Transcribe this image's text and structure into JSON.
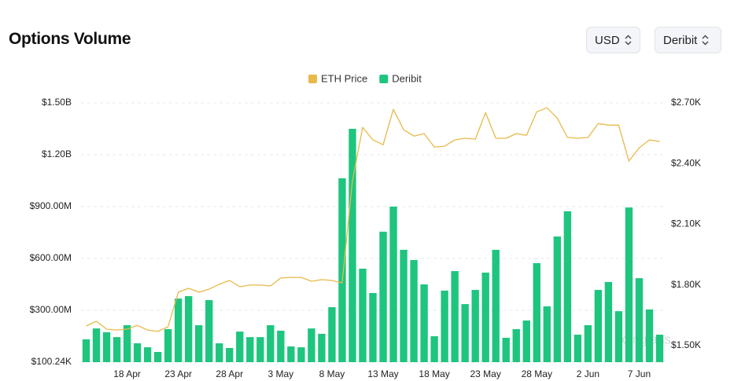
{
  "title": "Options Volume",
  "controls": [
    "USD",
    "Deribit"
  ],
  "watermark": "coinglass",
  "chart_data": {
    "type": "bar-line",
    "categories": [
      null,
      null,
      null,
      null,
      "18 Apr",
      null,
      null,
      null,
      null,
      "23 Apr",
      null,
      null,
      null,
      null,
      "28 Apr",
      null,
      null,
      null,
      null,
      "3 May",
      null,
      null,
      null,
      null,
      "8 May",
      null,
      null,
      null,
      null,
      "13 May",
      null,
      null,
      null,
      null,
      "18 May",
      null,
      null,
      null,
      null,
      "23 May",
      null,
      null,
      null,
      null,
      "28 May",
      null,
      null,
      null,
      null,
      "2 Jun",
      null,
      null,
      null,
      null,
      "7 Jun",
      null,
      null
    ],
    "series": [
      {
        "name": "ETH Price",
        "color": "#e7b94a",
        "type": "line",
        "axis": "y2",
        "values": [
          1597,
          1620,
          1581,
          1577,
          1581,
          1600,
          1577,
          1570,
          1593,
          1764,
          1783,
          1764,
          1779,
          1803,
          1822,
          1791,
          1799,
          1799,
          1795,
          1834,
          1837,
          1837,
          1818,
          1826,
          1822,
          1810,
          2315,
          2579,
          2517,
          2493,
          2668,
          2567,
          2536,
          2548,
          2482,
          2486,
          2517,
          2525,
          2521,
          2652,
          2525,
          2525,
          2548,
          2540,
          2656,
          2676,
          2625,
          2529,
          2525,
          2529,
          2598,
          2590,
          2590,
          2412,
          2478,
          2517,
          2509
        ]
      },
      {
        "name": "Deribit",
        "color": "#1ec57e",
        "type": "bar",
        "values": [
          132000000,
          195000000,
          173000000,
          145000000,
          214000000,
          109000000,
          86000000,
          59000000,
          191000000,
          368000000,
          382000000,
          214000000,
          359000000,
          109000000,
          82000000,
          177000000,
          145000000,
          145000000,
          214000000,
          182000000,
          91000000,
          86000000,
          195000000,
          164000000,
          318000000,
          1064000000,
          1350000000,
          541000000,
          400000000,
          755000000,
          900000000,
          650000000,
          591000000,
          450000000,
          150000000,
          414000000,
          527000000,
          336000000,
          418000000,
          518000000,
          650000000,
          141000000,
          191000000,
          241000000,
          573000000,
          323000000,
          727000000,
          873000000,
          159000000,
          214000000,
          418000000,
          464000000,
          295000000,
          895000000,
          486000000,
          305000000,
          159000000
        ]
      }
    ],
    "ylim": [
      100240,
      1500000000
    ],
    "yticks": [
      {
        "value": 100240,
        "label": "$100.24K"
      },
      {
        "value": 300000000,
        "label": "$300.00M"
      },
      {
        "value": 600000000,
        "label": "$600.00M"
      },
      {
        "value": 900000000,
        "label": "$900.00M"
      },
      {
        "value": 1200000000,
        "label": "$1.20B"
      },
      {
        "value": 1500000000,
        "label": "$1.50B"
      }
    ],
    "y2lim": [
      1418,
      2700
    ],
    "y2ticks": [
      {
        "value": 1500,
        "label": "$1.50K"
      },
      {
        "value": 1800,
        "label": "$1.80K"
      },
      {
        "value": 2100,
        "label": "$2.10K"
      },
      {
        "value": 2400,
        "label": "$2.40K"
      },
      {
        "value": 2700,
        "label": "$2.70K"
      }
    ],
    "grid": true,
    "legend": "top"
  }
}
